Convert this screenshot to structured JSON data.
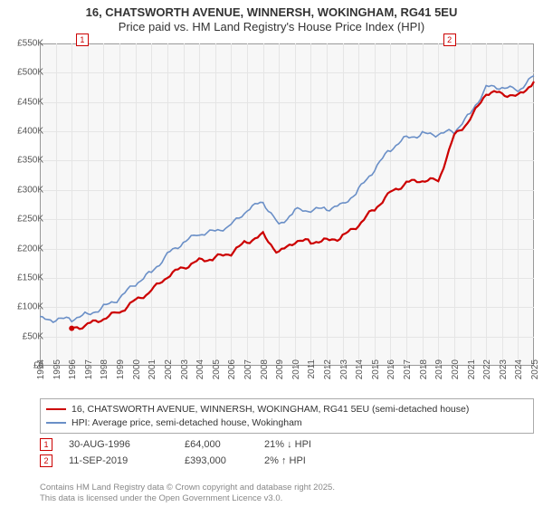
{
  "title": {
    "line1": "16, CHATSWORTH AVENUE, WINNERSH, WOKINGHAM, RG41 5EU",
    "line2": "Price paid vs. HM Land Registry's House Price Index (HPI)"
  },
  "chart": {
    "type": "line",
    "background_color": "#f7f7f7",
    "grid_color": "#e5e5e5",
    "border_color": "#999999",
    "ylim": [
      0,
      550000
    ],
    "ytick_step": 50000,
    "ytick_labels": [
      "£0",
      "£50K",
      "£100K",
      "£150K",
      "£200K",
      "£250K",
      "£300K",
      "£350K",
      "£400K",
      "£450K",
      "£500K",
      "£550K"
    ],
    "x_years": [
      1994,
      1995,
      1996,
      1997,
      1998,
      1999,
      2000,
      2001,
      2002,
      2003,
      2004,
      2005,
      2006,
      2007,
      2008,
      2009,
      2010,
      2011,
      2012,
      2013,
      2014,
      2015,
      2016,
      2017,
      2018,
      2019,
      2020,
      2021,
      2022,
      2023,
      2024,
      2025
    ],
    "series": [
      {
        "name": "hpi",
        "label": "HPI: Average price, semi-detached house, Wokingham",
        "color": "#6a8fc7",
        "line_width": 1.6,
        "values_by_year": {
          "1994": 80000,
          "1995": 78000,
          "1996": 80000,
          "1997": 88000,
          "1998": 100000,
          "1999": 115000,
          "2000": 140000,
          "2001": 160000,
          "2002": 190000,
          "2003": 210000,
          "2004": 225000,
          "2005": 230000,
          "2006": 240000,
          "2007": 265000,
          "2008": 280000,
          "2009": 240000,
          "2010": 265000,
          "2011": 265000,
          "2012": 268000,
          "2013": 275000,
          "2014": 300000,
          "2015": 335000,
          "2016": 370000,
          "2017": 390000,
          "2018": 395000,
          "2019": 395000,
          "2020": 400000,
          "2021": 430000,
          "2022": 475000,
          "2023": 475000,
          "2024": 470000,
          "2025": 495000
        }
      },
      {
        "name": "price_paid",
        "label": "16, CHATSWORTH AVENUE, WINNERSH, WOKINGHAM, RG41 5EU (semi-detached house)",
        "color": "#cc0000",
        "line_width": 2.2,
        "values_by_year": {
          "1996": 64000,
          "1997": 70000,
          "1998": 80000,
          "1999": 92000,
          "2000": 112000,
          "2001": 128000,
          "2002": 152000,
          "2003": 168000,
          "2004": 180000,
          "2005": 184000,
          "2006": 192000,
          "2007": 212000,
          "2008": 224000,
          "2009": 192000,
          "2010": 212000,
          "2011": 212000,
          "2012": 214000,
          "2013": 220000,
          "2014": 240000,
          "2015": 268000,
          "2016": 296000,
          "2017": 312000,
          "2018": 316000,
          "2019": 316000,
          "2020": 393000,
          "2021": 420000,
          "2022": 465000,
          "2023": 465000,
          "2024": 460000,
          "2025": 485000
        }
      }
    ],
    "markers": [
      {
        "n": "1",
        "year": 1996.66,
        "value": 64000
      },
      {
        "n": "2",
        "year": 2019.7,
        "value": 393000
      }
    ]
  },
  "legend": {
    "items": [
      {
        "color": "#cc0000",
        "label": "16, CHATSWORTH AVENUE, WINNERSH, WOKINGHAM, RG41 5EU (semi-detached house)"
      },
      {
        "color": "#6a8fc7",
        "label": "HPI: Average price, semi-detached house, Wokingham"
      }
    ]
  },
  "events": [
    {
      "n": "1",
      "date": "30-AUG-1996",
      "price": "£64,000",
      "pct": "21% ↓ HPI"
    },
    {
      "n": "2",
      "date": "11-SEP-2019",
      "price": "£393,000",
      "pct": "2% ↑ HPI"
    }
  ],
  "footer": {
    "line1": "Contains HM Land Registry data © Crown copyright and database right 2025.",
    "line2": "This data is licensed under the Open Government Licence v3.0."
  }
}
